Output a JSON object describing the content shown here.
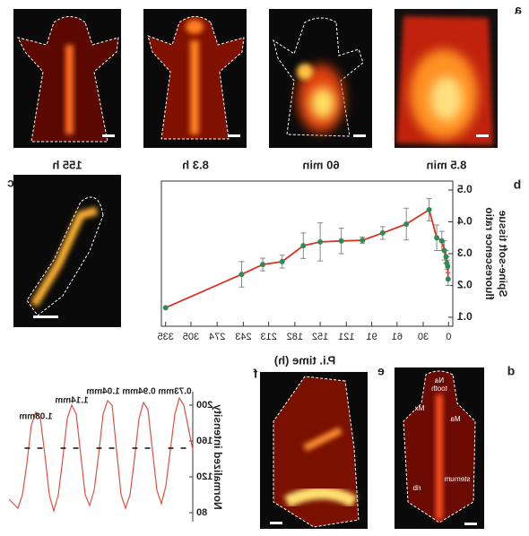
{
  "panel_labels": {
    "a": "a",
    "b": "b",
    "c": "c",
    "d": "d",
    "e": "e",
    "f": "f"
  },
  "panel_a": {
    "times": [
      "8.5 min",
      "60 min",
      "8.3 h",
      "155 h"
    ]
  },
  "panel_d": {
    "labels": [
      "Na",
      "tooth",
      "Mx",
      "Ma",
      "sternum",
      "rib"
    ]
  },
  "chart_data": [
    {
      "type": "line",
      "xlabel": "P.i. time (h)",
      "ylabel": [
        "Spine-soft tissue",
        "fluorescence ratio"
      ],
      "x": [
        335,
        245,
        220,
        197,
        172,
        152,
        127,
        102,
        78,
        50,
        23,
        14,
        8,
        5,
        3,
        2,
        1,
        0.5
      ],
      "values": [
        0.13,
        0.235,
        0.266,
        0.275,
        0.325,
        0.337,
        0.34,
        0.342,
        0.365,
        0.393,
        0.438,
        0.35,
        0.34,
        0.31,
        0.29,
        0.27,
        0.26,
        0.22
      ],
      "errors": [
        null,
        0.04,
        0.02,
        0.02,
        0.04,
        0.06,
        0.04,
        0.01,
        0.02,
        0.05,
        0.035,
        0.04,
        0.03,
        0.03,
        0.02,
        0.02,
        0.02,
        0.02
      ],
      "color": "#e03020",
      "marker_color": "#2e8b57",
      "xlim": [
        -5,
        340
      ],
      "ylim": [
        0.1,
        0.5
      ],
      "xticks": [
        0,
        30,
        61,
        91,
        121,
        152,
        182,
        213,
        243,
        274,
        305,
        335
      ],
      "yticks": [
        0.1,
        0.2,
        0.3,
        0.4,
        0.5
      ]
    },
    {
      "type": "profile",
      "ylabel": "Normalized intensity",
      "values": [
        150,
        175,
        200,
        208,
        190,
        150,
        110,
        90,
        105,
        150,
        195,
        203,
        185,
        140,
        100,
        85,
        100,
        150,
        200,
        205,
        190,
        145,
        105,
        88,
        100,
        145,
        190,
        200,
        185,
        140,
        100,
        82,
        100,
        145,
        185,
        192,
        178,
        135,
        100,
        85,
        90,
        95
      ],
      "color": "#e05040",
      "ylim": [
        70,
        215
      ],
      "yticks": [
        80,
        120,
        160,
        200
      ],
      "annotations": [
        "0.73mm",
        "0.94mm",
        "1.04mm",
        "1.14mm",
        "1.08mm"
      ]
    }
  ]
}
